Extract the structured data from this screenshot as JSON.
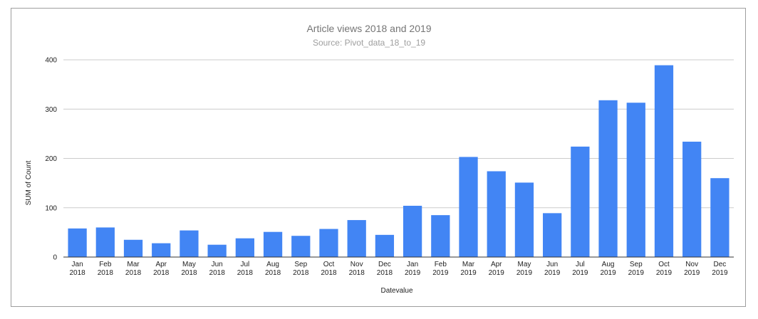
{
  "chart_data": {
    "type": "bar",
    "title": "Article views 2018 and 2019",
    "subtitle": "Source: Pivot_data_18_to_19",
    "xlabel": "Datevalue",
    "ylabel": "SUM of Count",
    "ylim": [
      0,
      400
    ],
    "yticks": [
      "0",
      "100",
      "200",
      "300",
      "400"
    ],
    "categories": [
      [
        "Jan",
        "2018"
      ],
      [
        "Feb",
        "2018"
      ],
      [
        "Mar",
        "2018"
      ],
      [
        "Apr",
        "2018"
      ],
      [
        "May",
        "2018"
      ],
      [
        "Jun",
        "2018"
      ],
      [
        "Jul",
        "2018"
      ],
      [
        "Aug",
        "2018"
      ],
      [
        "Sep",
        "2018"
      ],
      [
        "Oct",
        "2018"
      ],
      [
        "Nov",
        "2018"
      ],
      [
        "Dec",
        "2018"
      ],
      [
        "Jan",
        "2019"
      ],
      [
        "Feb",
        "2019"
      ],
      [
        "Mar",
        "2019"
      ],
      [
        "Apr",
        "2019"
      ],
      [
        "May",
        "2019"
      ],
      [
        "Jun",
        "2019"
      ],
      [
        "Jul",
        "2019"
      ],
      [
        "Aug",
        "2019"
      ],
      [
        "Sep",
        "2019"
      ],
      [
        "Oct",
        "2019"
      ],
      [
        "Nov",
        "2019"
      ],
      [
        "Dec",
        "2019"
      ]
    ],
    "values": [
      58,
      60,
      35,
      28,
      54,
      25,
      38,
      51,
      43,
      57,
      75,
      45,
      104,
      85,
      203,
      174,
      151,
      89,
      224,
      318,
      313,
      389,
      234,
      160
    ],
    "bar_color": "#4285f4",
    "grid": true,
    "legend": "none"
  }
}
